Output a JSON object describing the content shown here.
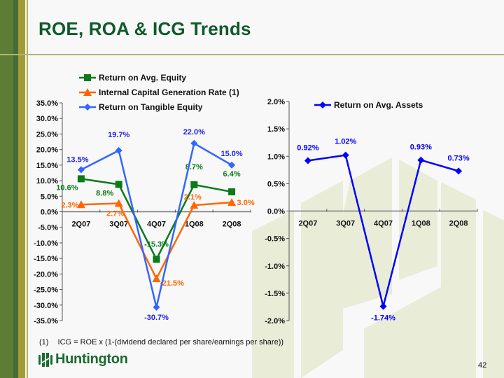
{
  "slide": {
    "title": "ROE, ROA & ICG Trends",
    "footnote_marker": "(1)",
    "footnote_text": "ICG = ROE x (1-(dividend declared per share/earnings per share))",
    "logo_text": "Huntington",
    "page_number": "42"
  },
  "colors": {
    "roe": "#0a7a1a",
    "icg": "#ff6600",
    "rote": "#3366ff",
    "roa": "#0000ff",
    "title": "#0f5a2b"
  },
  "chart_data": [
    {
      "type": "line",
      "title": "",
      "categories": [
        "2Q07",
        "3Q07",
        "4Q07",
        "1Q08",
        "2Q08"
      ],
      "ylim": [
        -35,
        35
      ],
      "ytick_step": 5,
      "ytick_labels": [
        "35.0%",
        "30.0%",
        "25.0%",
        "20.0%",
        "15.0%",
        "10.0%",
        "5.0%",
        "0.0%",
        "-5.0%",
        "-10.0%",
        "-15.0%",
        "-20.0%",
        "-25.0%",
        "-30.0%",
        "-35.0%"
      ],
      "xlabel": "",
      "ylabel": "",
      "grid": false,
      "legend_position": "top",
      "series": [
        {
          "name": "Return on Avg. Equity",
          "marker": "square",
          "color": "#0a7a1a",
          "values": [
            10.6,
            8.8,
            -15.3,
            8.7,
            6.4
          ],
          "labels": [
            "10.6%",
            "8.8%",
            "-15.3%",
            "8.7%",
            "6.4%"
          ]
        },
        {
          "name": "Internal Capital Generation Rate (1)",
          "marker": "triangle",
          "color": "#ff6600",
          "values": [
            2.3,
            2.7,
            -21.5,
            2.1,
            3.0
          ],
          "labels": [
            "2.3%",
            "2.7%",
            "-21.5%",
            "2.1%",
            "3.0%"
          ]
        },
        {
          "name": "Return on Tangible Equity",
          "marker": "diamond",
          "color": "#3366ff",
          "values": [
            13.5,
            19.7,
            -30.7,
            22.0,
            15.0
          ],
          "labels": [
            "13.5%",
            "19.7%",
            "-30.7%",
            "22.0%",
            "15.0%"
          ]
        }
      ]
    },
    {
      "type": "line",
      "title": "",
      "categories": [
        "2Q07",
        "3Q07",
        "4Q07",
        "1Q08",
        "2Q08"
      ],
      "ylim": [
        -2,
        2
      ],
      "ytick_step": 0.5,
      "ytick_labels": [
        "2.0%",
        "1.5%",
        "1.0%",
        "0.5%",
        "0.0%",
        "-0.5%",
        "-1.0%",
        "-1.5%",
        "-2.0%"
      ],
      "xlabel": "",
      "ylabel": "",
      "grid": false,
      "legend_position": "top",
      "series": [
        {
          "name": "Return on Avg. Assets",
          "marker": "diamond",
          "color": "#0000ff",
          "values": [
            0.92,
            1.02,
            -1.74,
            0.93,
            0.73
          ],
          "labels": [
            "0.92%",
            "1.02%",
            "-1.74%",
            "0.93%",
            "0.73%"
          ]
        }
      ]
    }
  ]
}
